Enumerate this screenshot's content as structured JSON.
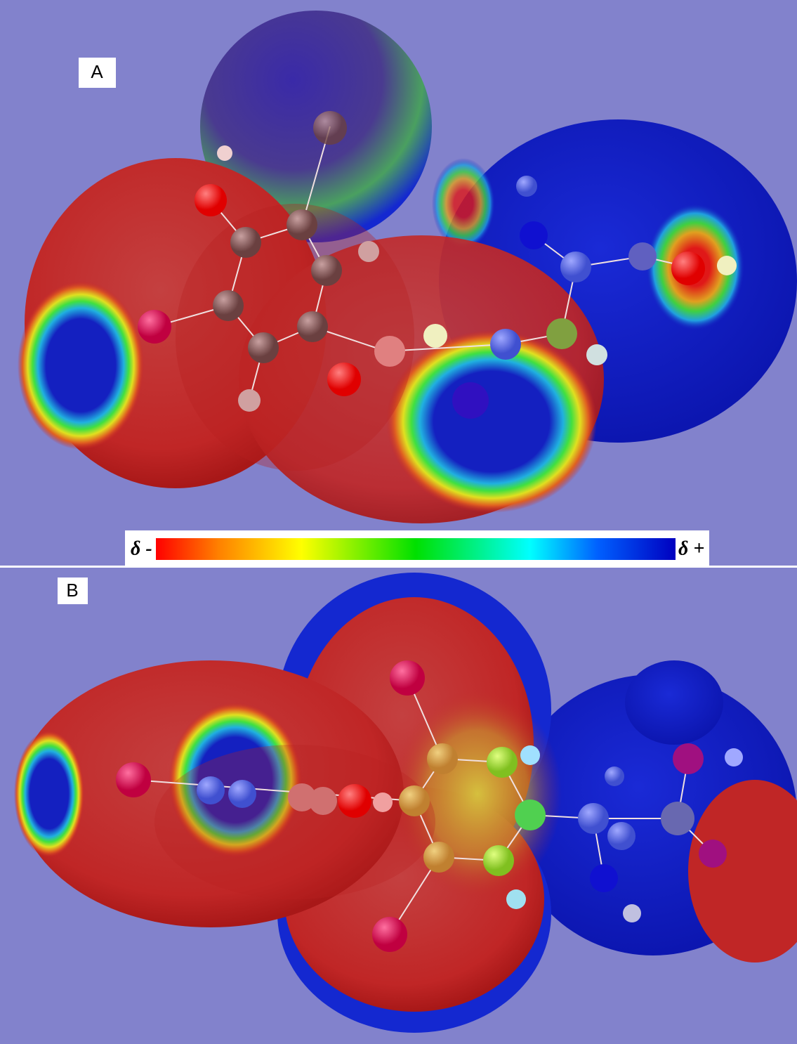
{
  "panels": [
    {
      "label": "A"
    },
    {
      "label": "B"
    }
  ],
  "color_scale": {
    "low_label": "δ -",
    "high_label": "δ +"
  }
}
